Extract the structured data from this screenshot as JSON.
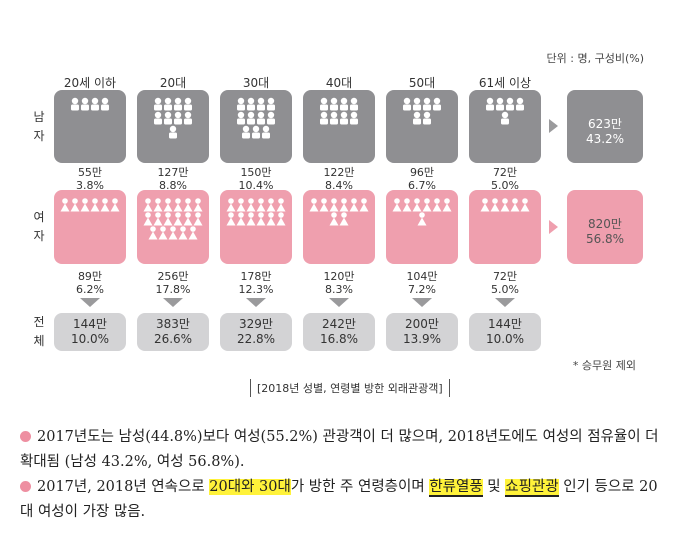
{
  "unit_label": "단위 : 명, 구성비(%)",
  "row_labels": {
    "male": "남\n자",
    "female": "여\n자",
    "total": "전\n체"
  },
  "age_groups": [
    "20세 이하",
    "20대",
    "30대",
    "40대",
    "50대",
    "61세 이상"
  ],
  "male": [
    {
      "count": "55만",
      "pct": "3.8%"
    },
    {
      "count": "127만",
      "pct": "8.8%"
    },
    {
      "count": "150만",
      "pct": "10.4%"
    },
    {
      "count": "122만",
      "pct": "8.4%"
    },
    {
      "count": "96만",
      "pct": "6.7%"
    },
    {
      "count": "72만",
      "pct": "5.0%"
    }
  ],
  "female": [
    {
      "count": "89만",
      "pct": "6.2%"
    },
    {
      "count": "256만",
      "pct": "17.8%"
    },
    {
      "count": "178만",
      "pct": "12.3%"
    },
    {
      "count": "120만",
      "pct": "8.3%"
    },
    {
      "count": "104만",
      "pct": "7.2%"
    },
    {
      "count": "72만",
      "pct": "5.0%"
    }
  ],
  "total": [
    {
      "count": "144만",
      "pct": "10.0%"
    },
    {
      "count": "383만",
      "pct": "26.6%"
    },
    {
      "count": "329만",
      "pct": "22.8%"
    },
    {
      "count": "242만",
      "pct": "16.8%"
    },
    {
      "count": "200만",
      "pct": "13.9%"
    },
    {
      "count": "144만",
      "pct": "10.0%"
    }
  ],
  "male_icon_counts": [
    4,
    9,
    11,
    8,
    6,
    5
  ],
  "female_icon_counts": [
    6,
    17,
    12,
    8,
    7,
    5
  ],
  "summary": {
    "male": {
      "count": "623만",
      "pct": "43.2%"
    },
    "female": {
      "count": "820만",
      "pct": "56.8%"
    }
  },
  "footnote": "* 승무원 제외",
  "caption": "2018년 성별, 연령별 방한 외래관광객",
  "bullets": {
    "b1": "2017년도는 남성(44.8%)보다 여성(55.2%) 관광객이 더 많으며, 2018년도에도 여성의 점유율이 더 확대됨 (남성 43.2%, 여성 56.8%).",
    "b2_pre": "2017년, 2018년 연속으로 ",
    "b2_hl1": "20대와 30대",
    "b2_mid1": "가 방한 주 연령층이며 ",
    "b2_hl2": "한류열풍",
    "b2_mid2": " 및 ",
    "b2_hl3": "쇼핑관광",
    "b2_post": " 인기 등으로 20대 여성이 가장 많음."
  },
  "colors": {
    "male_box": "#8f8f92",
    "female_box": "#ef9fae",
    "total_box": "#d3d3d5",
    "bullet_dot": "#ee8fa1",
    "highlight": "#fff23a"
  },
  "icons": {
    "male": "person-icon",
    "female": "woman-icon"
  }
}
